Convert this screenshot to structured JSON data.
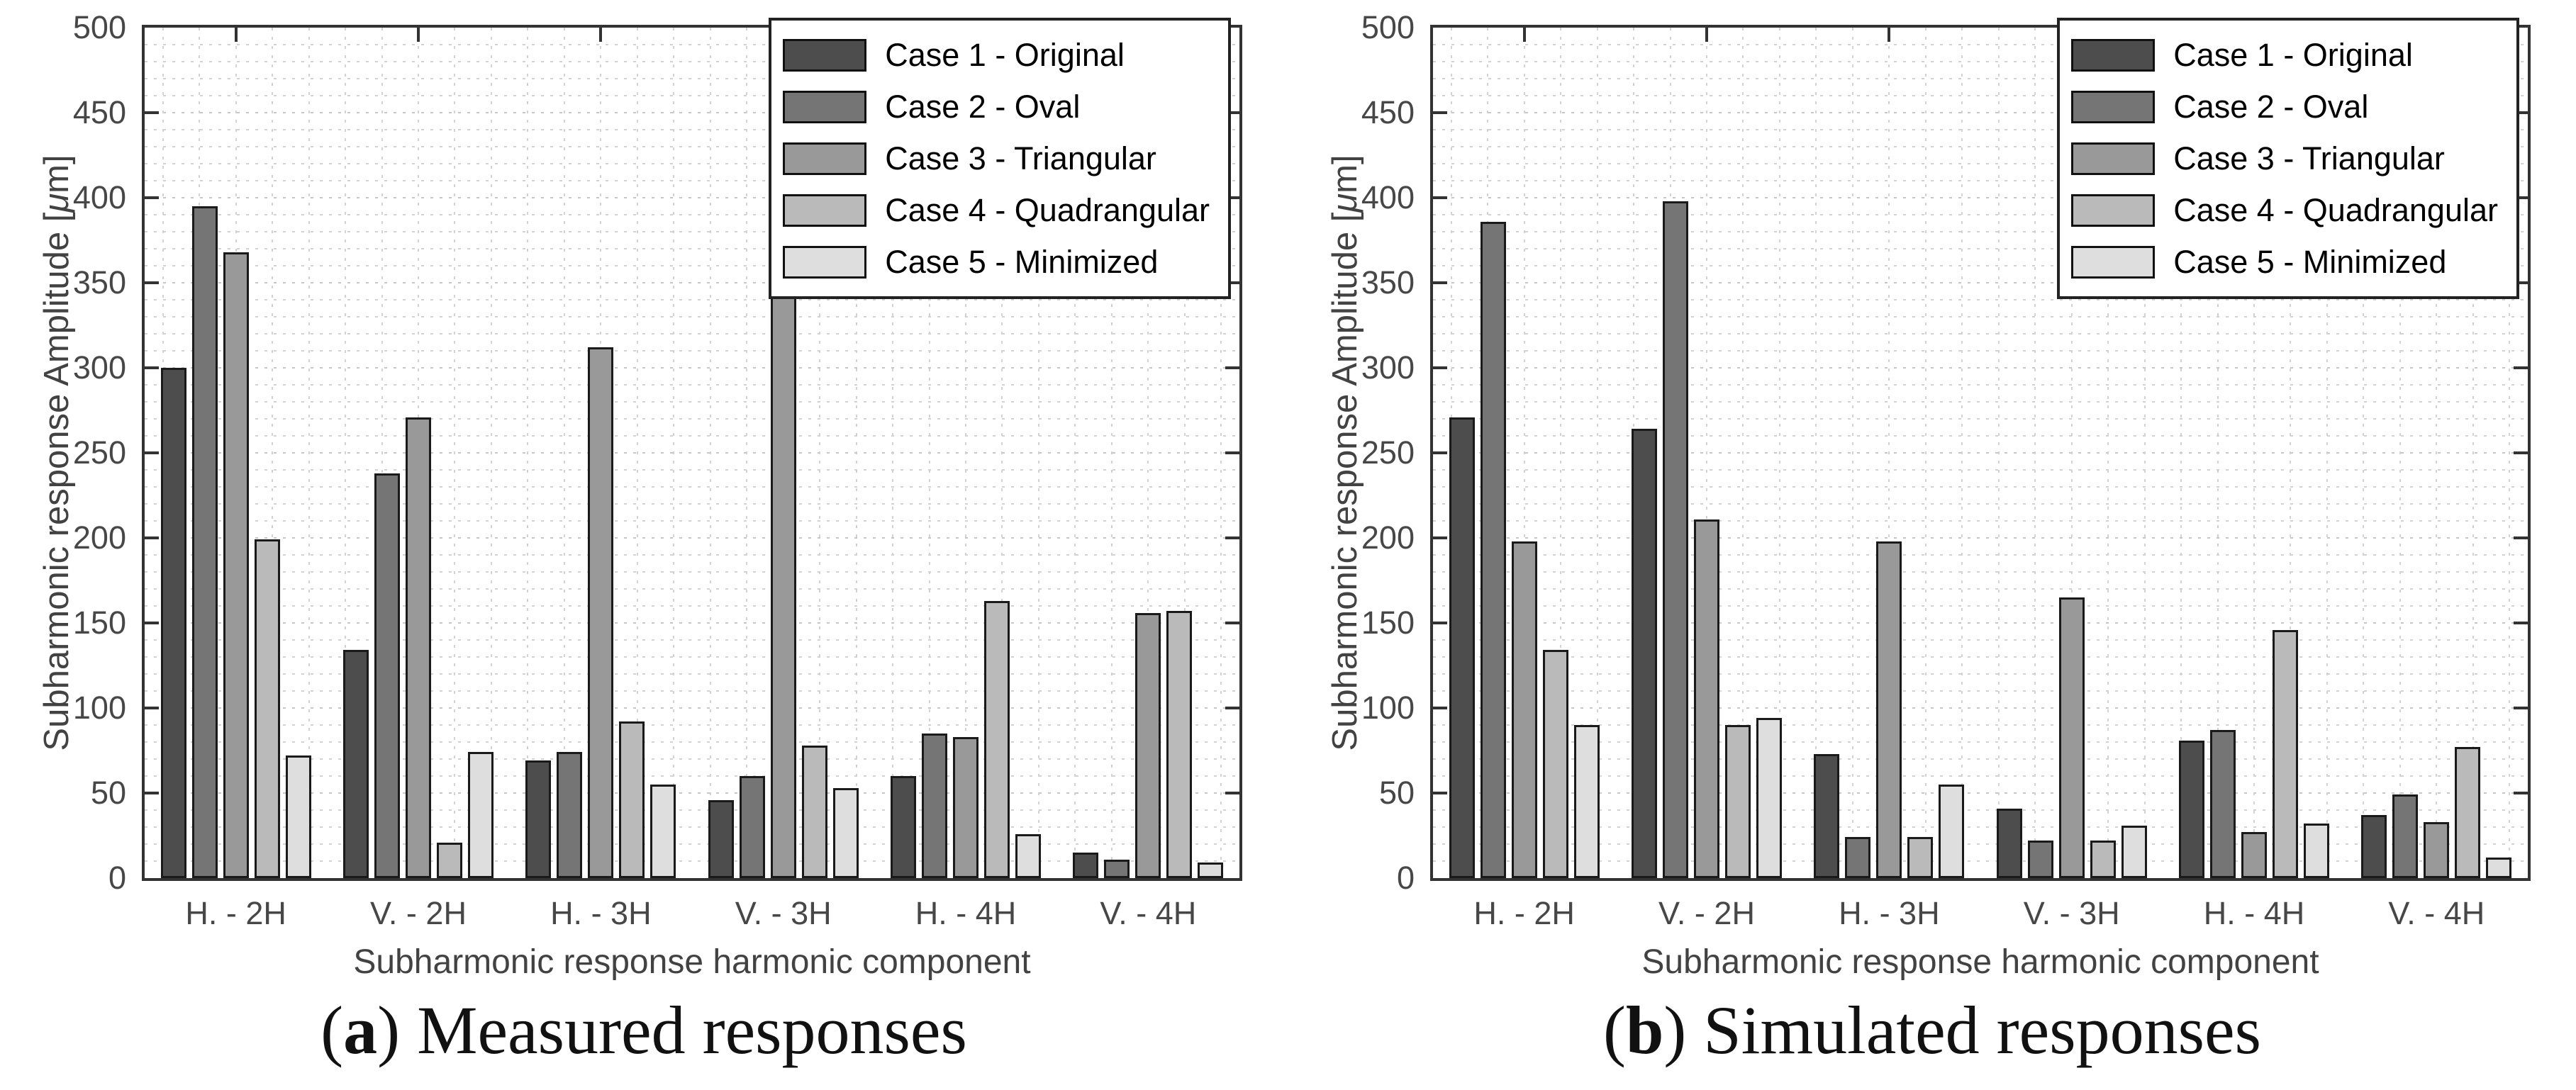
{
  "figure": {
    "xlabel": "Subharmonic response harmonic component",
    "ylabel_pre": "Subharmonic response Amplitude [",
    "ylabel_mu": "μ",
    "ylabel_post": "m]",
    "ytick_labels": [
      "0",
      "50",
      "100",
      "150",
      "200",
      "250",
      "300",
      "350",
      "400",
      "450",
      "500"
    ],
    "axis_text_color": "#474747",
    "spine_color": "#333333",
    "grid_color": "#c6c6c6",
    "bar_edge_color": "#1a1a1a",
    "background": "#ffffff"
  },
  "chart_data": [
    {
      "type": "bar",
      "caption": {
        "open": "(",
        "letter": "a",
        "close": ")",
        "text": "Measured responses"
      },
      "xlabel": "Subharmonic response harmonic component",
      "ylabel": "Subharmonic response Amplitude [μm]",
      "ylim": [
        0,
        500
      ],
      "ytick_step": 50,
      "grid": "dotted major+minor, minor y step 10",
      "legend_position": "top-right",
      "categories": [
        "H. - 2H",
        "V. - 2H",
        "H. - 3H",
        "V. - 3H",
        "H. - 4H",
        "V. - 4H"
      ],
      "series": [
        {
          "name": "Case 1 - Original",
          "color": "#4d4d4d",
          "values": [
            300,
            134,
            69,
            46,
            60,
            15
          ]
        },
        {
          "name": "Case 2 - Oval",
          "color": "#757575",
          "values": [
            395,
            238,
            74,
            60,
            85,
            11
          ]
        },
        {
          "name": "Case 3 - Triangular",
          "color": "#999999",
          "values": [
            368,
            271,
            312,
            429,
            83,
            156
          ]
        },
        {
          "name": "Case 4 - Quadrangular",
          "color": "#bababa",
          "values": [
            199,
            21,
            92,
            78,
            163,
            157
          ]
        },
        {
          "name": "Case 5 - Minimized",
          "color": "#dedede",
          "values": [
            72,
            74,
            55,
            53,
            26,
            9
          ]
        }
      ]
    },
    {
      "type": "bar",
      "caption": {
        "open": "(",
        "letter": "b",
        "close": ")",
        "text": "Simulated responses"
      },
      "xlabel": "Subharmonic response harmonic component",
      "ylabel": "Subharmonic response Amplitude [μm]",
      "ylim": [
        0,
        500
      ],
      "ytick_step": 50,
      "grid": "dotted major+minor, minor y step 10",
      "legend_position": "top-right",
      "categories": [
        "H. - 2H",
        "V. - 2H",
        "H. - 3H",
        "V. - 3H",
        "H. - 4H",
        "V. - 4H"
      ],
      "series": [
        {
          "name": "Case 1 - Original",
          "color": "#4d4d4d",
          "values": [
            271,
            264,
            73,
            41,
            81,
            37
          ]
        },
        {
          "name": "Case 2 - Oval",
          "color": "#757575",
          "values": [
            386,
            398,
            24,
            22,
            87,
            49
          ]
        },
        {
          "name": "Case 3 - Triangular",
          "color": "#999999",
          "values": [
            198,
            211,
            198,
            165,
            27,
            33
          ]
        },
        {
          "name": "Case 4 - Quadrangular",
          "color": "#bababa",
          "values": [
            134,
            90,
            24,
            22,
            146,
            77
          ]
        },
        {
          "name": "Case 5 - Minimized",
          "color": "#dedede",
          "values": [
            90,
            94,
            55,
            31,
            32,
            12
          ]
        }
      ]
    }
  ]
}
